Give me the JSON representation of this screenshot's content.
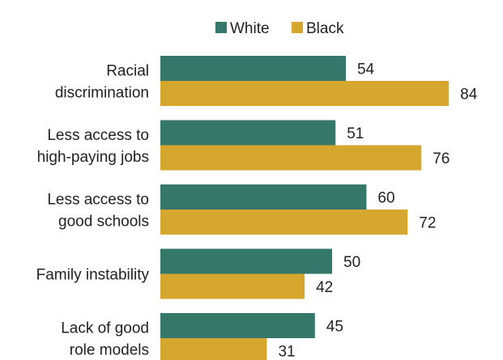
{
  "chart_data": {
    "type": "bar",
    "orientation": "horizontal",
    "categories": [
      [
        "Racial",
        "discrimination"
      ],
      [
        "Less access to",
        "high-paying jobs"
      ],
      [
        "Less access to",
        "good schools"
      ],
      [
        "Family instability"
      ],
      [
        "Lack of good",
        "role models"
      ]
    ],
    "series": [
      {
        "name": "White",
        "color": "#35786a",
        "values": [
          54,
          51,
          60,
          50,
          45
        ]
      },
      {
        "name": "Black",
        "color": "#d5a72f",
        "values": [
          84,
          76,
          72,
          42,
          31
        ]
      }
    ],
    "xlim": [
      0,
      100
    ],
    "grid": false,
    "legend_position": "top"
  }
}
